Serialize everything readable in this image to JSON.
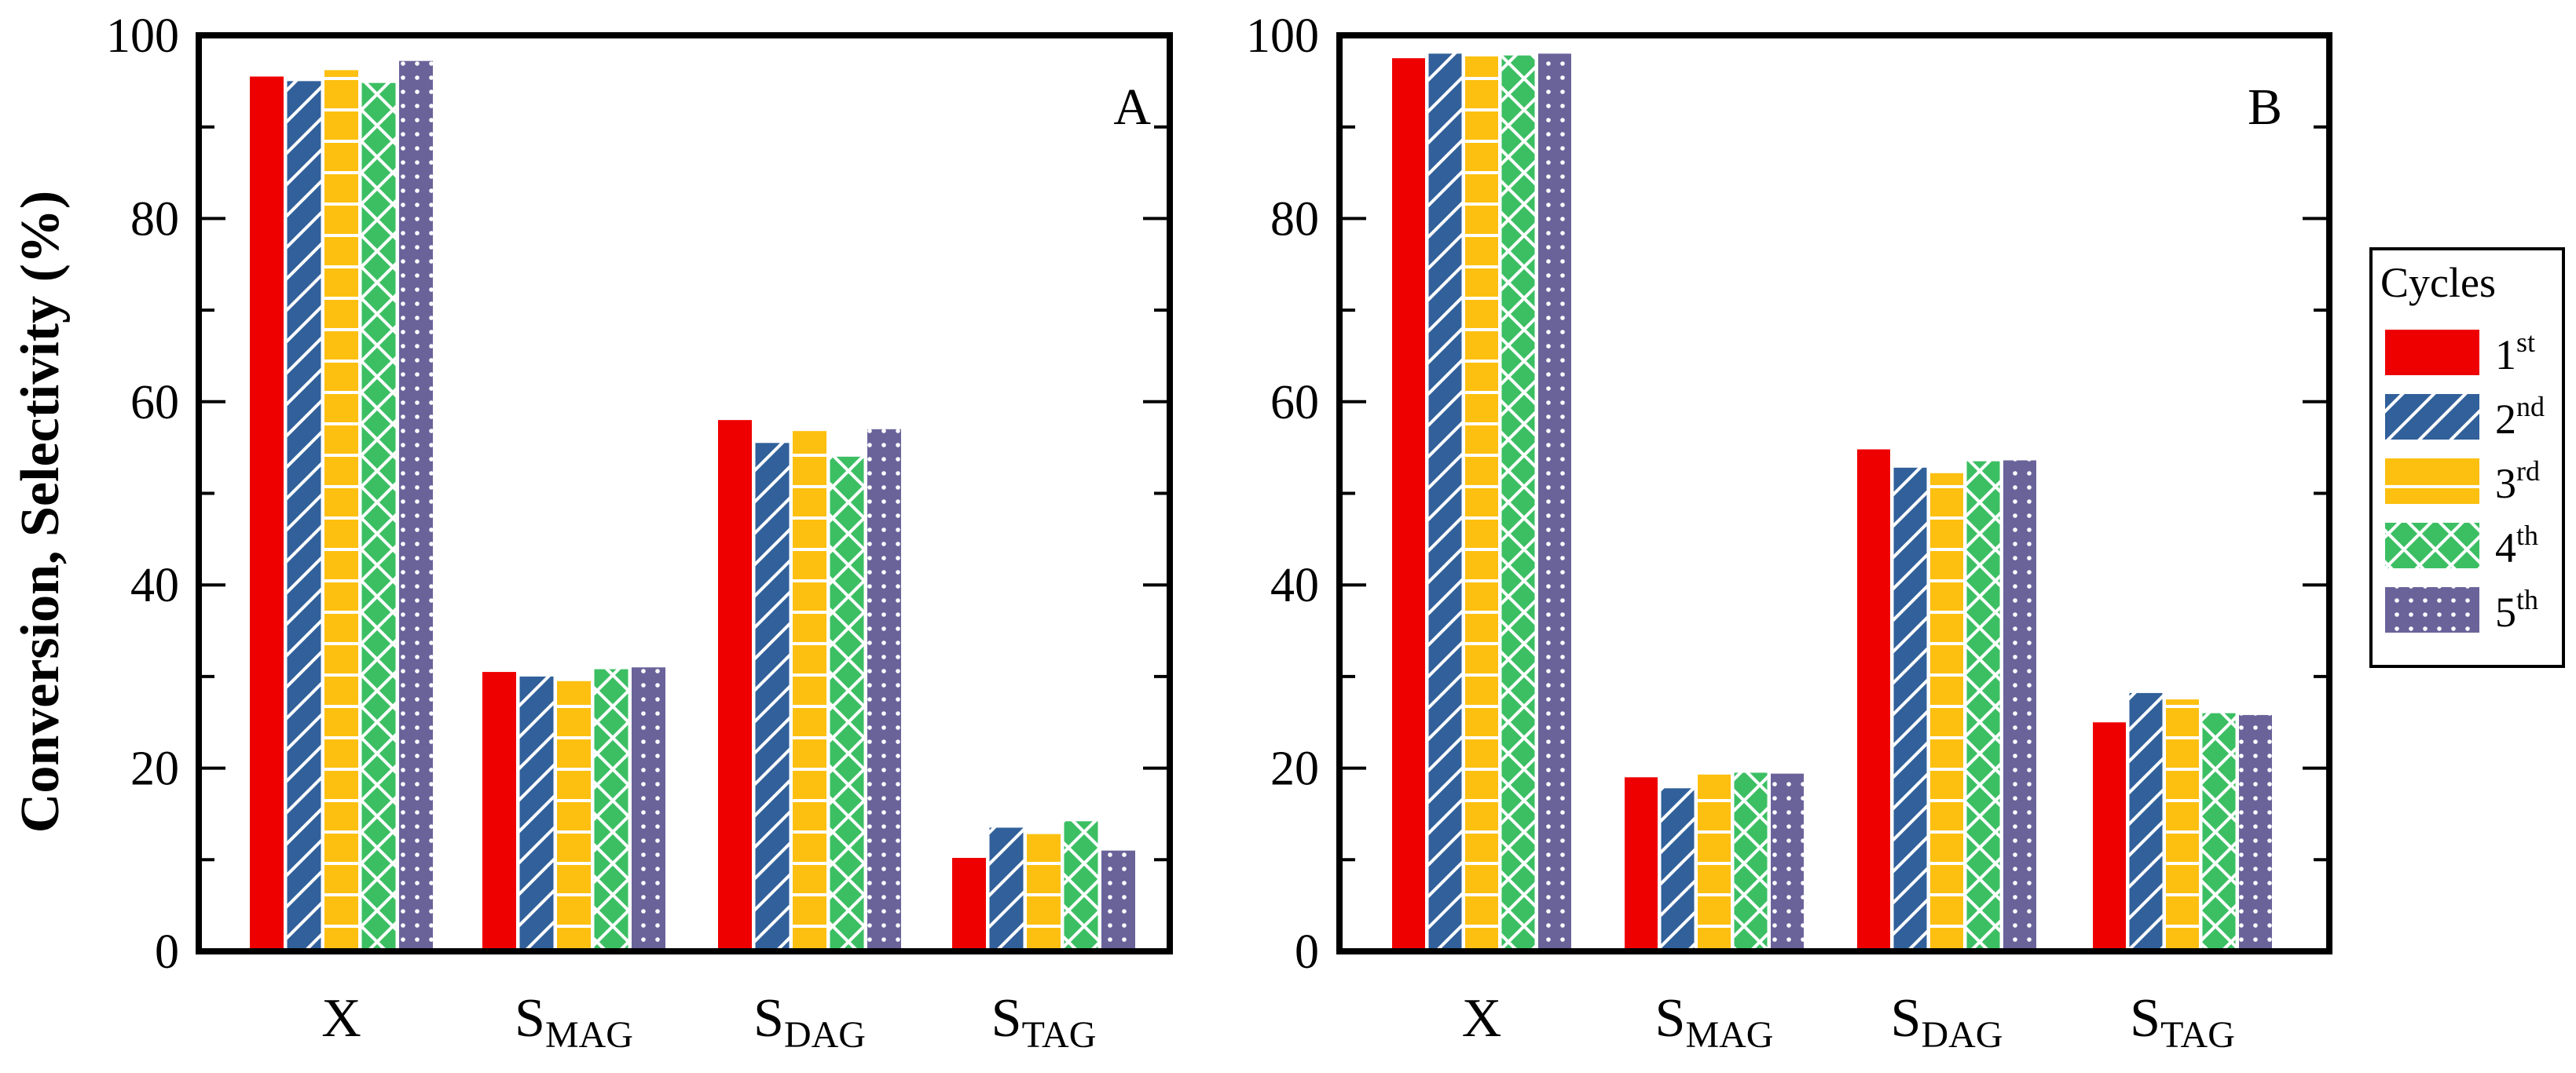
{
  "chart_data": [
    {
      "type": "bar",
      "panel_label": "A",
      "ylabel": "Conversion, Selectivity (%)",
      "ylim": [
        0,
        100
      ],
      "yticks": [
        "0",
        "20",
        "40",
        "60",
        "80",
        "100"
      ],
      "categories": [
        {
          "main": "X",
          "sub": ""
        },
        {
          "main": "S",
          "sub": "MAG"
        },
        {
          "main": "S",
          "sub": "DAG"
        },
        {
          "main": "S",
          "sub": "TAG"
        }
      ],
      "series": [
        {
          "name": "1st",
          "values": [
            95.5,
            30.5,
            58.0,
            10.2
          ]
        },
        {
          "name": "2nd",
          "values": [
            95.0,
            30.0,
            55.5,
            13.5
          ]
        },
        {
          "name": "3rd",
          "values": [
            96.2,
            29.5,
            56.8,
            12.8
          ]
        },
        {
          "name": "4th",
          "values": [
            94.8,
            30.8,
            54.0,
            14.2
          ]
        },
        {
          "name": "5th",
          "values": [
            97.2,
            31.0,
            57.0,
            11.0
          ]
        }
      ]
    },
    {
      "type": "bar",
      "panel_label": "B",
      "ylim": [
        0,
        100
      ],
      "yticks": [
        "0",
        "20",
        "40",
        "60",
        "80",
        "100"
      ],
      "categories": [
        {
          "main": "X",
          "sub": ""
        },
        {
          "main": "S",
          "sub": "MAG"
        },
        {
          "main": "S",
          "sub": "DAG"
        },
        {
          "main": "S",
          "sub": "TAG"
        }
      ],
      "series": [
        {
          "name": "1st",
          "values": [
            97.5,
            19.0,
            54.8,
            25.0
          ]
        },
        {
          "name": "2nd",
          "values": [
            98.0,
            17.8,
            52.8,
            28.2
          ]
        },
        {
          "name": "3rd",
          "values": [
            97.7,
            19.3,
            52.2,
            27.5
          ]
        },
        {
          "name": "4th",
          "values": [
            97.8,
            19.5,
            53.5,
            26.0
          ]
        },
        {
          "name": "5th",
          "values": [
            98.0,
            19.4,
            53.6,
            25.8
          ]
        }
      ]
    }
  ],
  "legend": {
    "title": "Cycles",
    "items": [
      {
        "base": "1",
        "sup": "st",
        "color": "#ee0000",
        "pattern": "solid"
      },
      {
        "base": "2",
        "sup": "nd",
        "color": "#31609a",
        "pattern": "diagonal"
      },
      {
        "base": "3",
        "sup": "rd",
        "color": "#fdc010",
        "pattern": "horizontal"
      },
      {
        "base": "4",
        "sup": "th",
        "color": "#3cbf63",
        "pattern": "crosshatch"
      },
      {
        "base": "5",
        "sup": "th",
        "color": "#6a639a",
        "pattern": "dots"
      }
    ]
  }
}
